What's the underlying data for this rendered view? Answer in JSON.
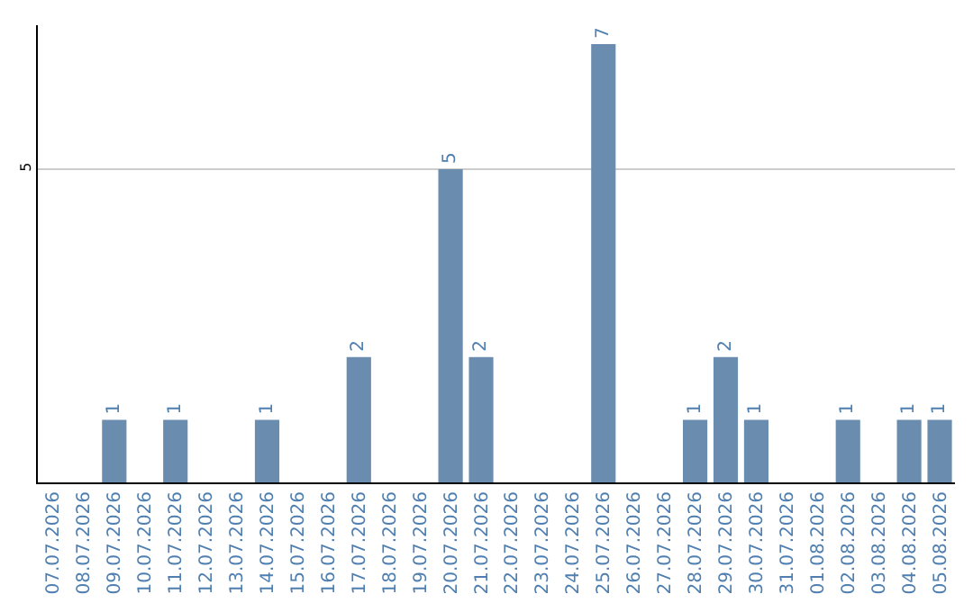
{
  "chart_data": {
    "type": "bar",
    "categories": [
      "07.07.2026",
      "08.07.2026",
      "09.07.2026",
      "10.07.2026",
      "11.07.2026",
      "12.07.2026",
      "13.07.2026",
      "14.07.2026",
      "15.07.2026",
      "16.07.2026",
      "17.07.2026",
      "18.07.2026",
      "19.07.2026",
      "20.07.2026",
      "21.07.2026",
      "22.07.2026",
      "23.07.2026",
      "24.07.2026",
      "25.07.2026",
      "26.07.2026",
      "27.07.2026",
      "28.07.2026",
      "29.07.2026",
      "30.07.2026",
      "31.07.2026",
      "01.08.2026",
      "02.08.2026",
      "03.08.2026",
      "04.08.2026",
      "05.08.2026"
    ],
    "values": [
      0,
      0,
      1,
      0,
      1,
      0,
      0,
      1,
      0,
      0,
      2,
      0,
      0,
      5,
      2,
      0,
      0,
      0,
      7,
      0,
      0,
      1,
      2,
      1,
      0,
      0,
      1,
      0,
      1,
      1
    ],
    "value_labels": [
      null,
      null,
      "1",
      null,
      "1",
      null,
      null,
      "1",
      null,
      null,
      "2",
      null,
      null,
      "5",
      "2",
      null,
      null,
      null,
      "7",
      null,
      null,
      "1",
      "2",
      "1",
      null,
      null,
      "1",
      null,
      "1",
      "1"
    ],
    "color": "#6a8caf",
    "ylim": [
      0,
      7.3
    ],
    "yticks": [
      5
    ],
    "grid": "y"
  }
}
